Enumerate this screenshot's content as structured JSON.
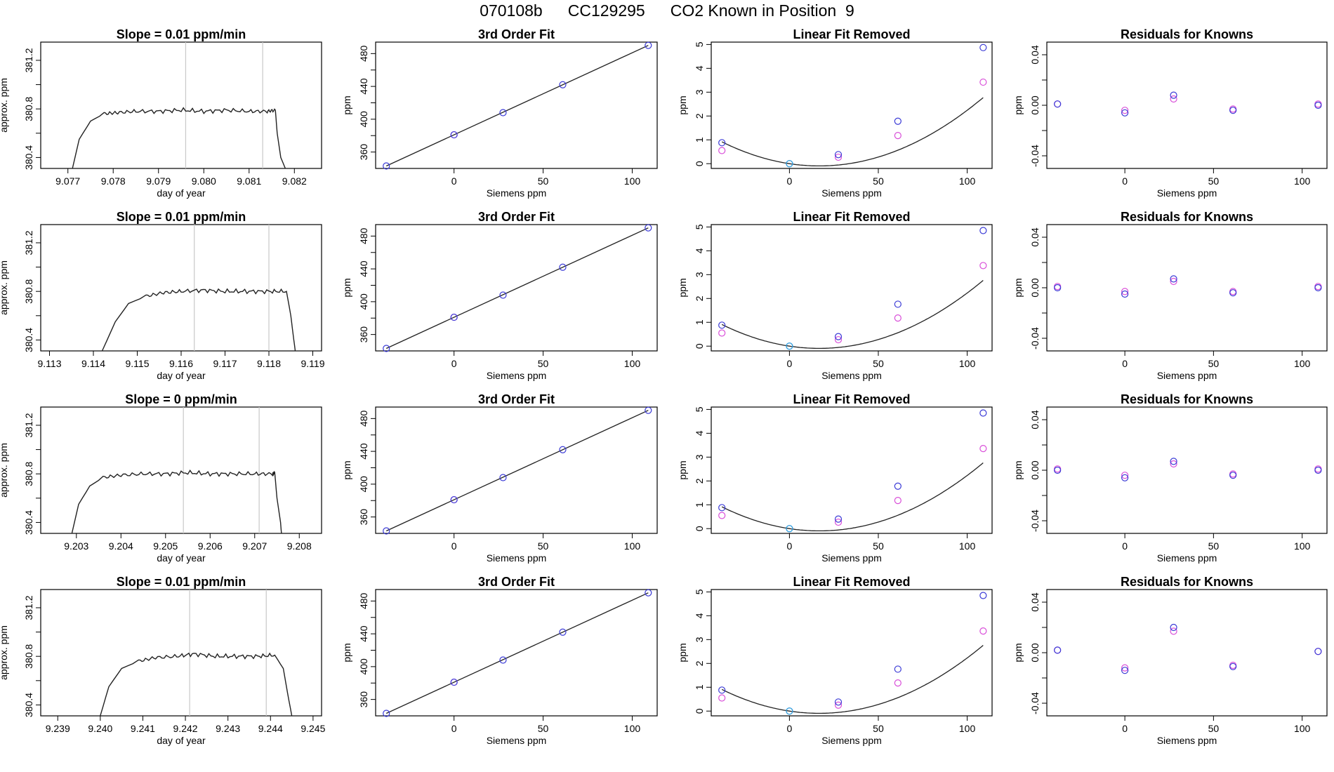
{
  "figure": {
    "title_parts": [
      "070108b",
      "CC129295",
      "CO2 Known in Position  9"
    ],
    "colors": {
      "axis": "#000000",
      "curve": "#222222",
      "blue": "#3a3ad6",
      "magenta": "#d94fd9",
      "cyan": "#33aadd",
      "red": "#ff3333",
      "vline": "#c8c8c8"
    }
  },
  "chart_data": [
    {
      "type": "line",
      "panel": "trace",
      "row": 1,
      "title": "Slope =  0.01  ppm/min",
      "xlabel": "day of year",
      "ylabel": "approx. ppm",
      "xlim": [
        9.0764,
        9.0826
      ],
      "ylim": [
        380.31,
        381.35
      ],
      "xticks": [
        9.077,
        9.078,
        9.079,
        9.08,
        9.081,
        9.082
      ],
      "xtick_labels": [
        "9.077",
        "9.078",
        "9.079",
        "9.080",
        "9.081",
        "9.082"
      ],
      "yticks": [
        380.4,
        380.8,
        381.2
      ],
      "ytick_labels": [
        "380.4",
        "380.8",
        "381.2"
      ],
      "vlines": [
        9.0796,
        9.0813
      ],
      "x": [
        9.0771,
        9.07725,
        9.0775,
        9.0778,
        9.0781,
        9.0785,
        9.079,
        9.0795,
        9.08,
        9.0805,
        9.081,
        9.0814,
        9.08158,
        9.08162,
        9.0817,
        9.0818
      ],
      "y": [
        380.31,
        380.55,
        380.7,
        380.76,
        380.77,
        380.78,
        380.78,
        380.79,
        380.78,
        380.79,
        380.78,
        380.78,
        380.79,
        380.6,
        380.4,
        380.31
      ]
    },
    {
      "type": "scatter",
      "panel": "fit",
      "row": 1,
      "title": "3rd Order Fit",
      "xlabel": "Siemens ppm",
      "ylabel": "ppm",
      "xlim": [
        -44,
        114
      ],
      "ylim": [
        340,
        494
      ],
      "xticks": [
        0,
        50,
        100
      ],
      "xtick_labels": [
        "0",
        "50",
        "100"
      ],
      "yticks": [
        360,
        400,
        440,
        480
      ],
      "ytick_labels": [
        "360",
        "400",
        "440",
        "480"
      ],
      "points": {
        "x": [
          -38,
          0,
          27.5,
          61,
          109
        ],
        "y": [
          343,
          381,
          408,
          442,
          490
        ]
      },
      "magenta_points": {
        "x": [
          0
        ],
        "y": [
          381
        ]
      },
      "curve": {
        "x": [
          -38,
          109
        ],
        "y": [
          343,
          490
        ]
      }
    },
    {
      "type": "scatter",
      "panel": "linfit",
      "row": 1,
      "title": "Linear Fit Removed",
      "xlabel": "Siemens ppm",
      "ylabel": "ppm",
      "xlim": [
        -44,
        114
      ],
      "ylim": [
        -0.2,
        5.1
      ],
      "xticks": [
        0,
        50,
        100
      ],
      "xtick_labels": [
        "0",
        "50",
        "100"
      ],
      "yticks": [
        0,
        1,
        2,
        3,
        4,
        5
      ],
      "ytick_labels": [
        "0",
        "1",
        "2",
        "3",
        "4",
        "5"
      ],
      "points": {
        "x": [
          -38,
          0,
          27.5,
          61,
          109
        ],
        "y": [
          0.88,
          0.0,
          0.38,
          1.78,
          4.87
        ]
      },
      "magenta_points": {
        "x": [
          -38,
          27.5,
          61,
          109
        ],
        "y": [
          0.55,
          0.27,
          1.18,
          3.42
        ]
      },
      "cyan_points": {
        "x": [
          0
        ],
        "y": [
          0.0
        ]
      },
      "curve": {
        "a": 0.000337,
        "b": -0.0113,
        "c": 0.0
      }
    },
    {
      "type": "scatter",
      "panel": "resid",
      "row": 1,
      "title": "Residuals for Knowns",
      "xlabel": "Siemens ppm",
      "ylabel": "ppm",
      "xlim": [
        -44,
        114
      ],
      "ylim": [
        -0.05,
        0.05
      ],
      "xticks": [
        0,
        50,
        100
      ],
      "xtick_labels": [
        "0",
        "50",
        "100"
      ],
      "yticks": [
        -0.04,
        0.0,
        0.04
      ],
      "ytick_labels": [
        "-0.04",
        "0.00",
        "0.04"
      ],
      "points": {
        "x": [
          -38,
          0,
          27.5,
          61,
          109
        ],
        "y": [
          0.001,
          -0.006,
          0.008,
          -0.004,
          0.0
        ]
      },
      "magenta_points": {
        "x": [
          -38,
          0,
          27.5,
          61,
          109
        ],
        "y": [
          0.001,
          -0.004,
          0.005,
          -0.003,
          0.001
        ]
      }
    },
    {
      "type": "line",
      "panel": "trace",
      "row": 2,
      "title": "Slope =  0.01  ppm/min",
      "xlabel": "day of year",
      "ylabel": "approx. ppm",
      "xlim": [
        9.1128,
        9.1192
      ],
      "ylim": [
        380.31,
        381.35
      ],
      "xticks": [
        9.113,
        9.114,
        9.115,
        9.116,
        9.117,
        9.118,
        9.119
      ],
      "xtick_labels": [
        "9.113",
        "9.114",
        "9.115",
        "9.116",
        "9.117",
        "9.118",
        "9.119"
      ],
      "vlines": [
        9.1163,
        9.118
      ],
      "yticks": [
        380.4,
        380.8,
        381.2
      ],
      "ytick_labels": [
        "380.4",
        "380.8",
        "381.2"
      ],
      "x": [
        9.1142,
        9.1145,
        9.1148,
        9.1152,
        9.1156,
        9.116,
        9.1165,
        9.117,
        9.1175,
        9.118,
        9.1184,
        9.1185,
        9.11855,
        9.1186
      ],
      "y": [
        380.31,
        380.55,
        380.7,
        380.76,
        380.79,
        380.8,
        380.81,
        380.8,
        380.8,
        380.8,
        380.8,
        380.6,
        380.45,
        380.31
      ]
    },
    {
      "type": "scatter",
      "panel": "fit",
      "row": 2,
      "title": "3rd Order Fit",
      "xlabel": "Siemens ppm",
      "ylabel": "ppm",
      "xlim": [
        -44,
        114
      ],
      "ylim": [
        340,
        494
      ],
      "xticks": [
        0,
        50,
        100
      ],
      "xtick_labels": [
        "0",
        "50",
        "100"
      ],
      "yticks": [
        360,
        400,
        440,
        480
      ],
      "ytick_labels": [
        "360",
        "400",
        "440",
        "480"
      ],
      "points": {
        "x": [
          -38,
          0,
          27.5,
          61,
          109
        ],
        "y": [
          343,
          381,
          408,
          442,
          490
        ]
      },
      "magenta_points": {
        "x": [
          0
        ],
        "y": [
          381
        ]
      },
      "curve": {
        "x": [
          -38,
          109
        ],
        "y": [
          343,
          490
        ]
      }
    },
    {
      "type": "scatter",
      "panel": "linfit",
      "row": 2,
      "title": "Linear Fit Removed",
      "xlabel": "Siemens ppm",
      "ylabel": "ppm",
      "xlim": [
        -44,
        114
      ],
      "ylim": [
        -0.2,
        5.1
      ],
      "xticks": [
        0,
        50,
        100
      ],
      "xtick_labels": [
        "0",
        "50",
        "100"
      ],
      "yticks": [
        0,
        1,
        2,
        3,
        4,
        5
      ],
      "ytick_labels": [
        "0",
        "1",
        "2",
        "3",
        "4",
        "5"
      ],
      "points": {
        "x": [
          -38,
          0,
          27.5,
          61,
          109
        ],
        "y": [
          0.88,
          0.0,
          0.4,
          1.76,
          4.85
        ]
      },
      "magenta_points": {
        "x": [
          -38,
          27.5,
          61,
          109
        ],
        "y": [
          0.55,
          0.27,
          1.18,
          3.38
        ]
      },
      "cyan_points": {
        "x": [
          0
        ],
        "y": [
          0.0
        ]
      },
      "curve": {
        "a": 0.000335,
        "b": -0.0112,
        "c": 0.0
      }
    },
    {
      "type": "scatter",
      "panel": "resid",
      "row": 2,
      "title": "Residuals for Knowns",
      "xlabel": "Siemens ppm",
      "ylabel": "ppm",
      "xlim": [
        -44,
        114
      ],
      "ylim": [
        -0.05,
        0.05
      ],
      "xticks": [
        0,
        50,
        100
      ],
      "xtick_labels": [
        "0",
        "50",
        "100"
      ],
      "yticks": [
        -0.04,
        0.0,
        0.04
      ],
      "ytick_labels": [
        "-0.04",
        "0.00",
        "0.04"
      ],
      "points": {
        "x": [
          -38,
          0,
          27.5,
          61,
          109
        ],
        "y": [
          0.0,
          -0.005,
          0.007,
          -0.004,
          0.0
        ]
      },
      "magenta_points": {
        "x": [
          -38,
          0,
          27.5,
          61,
          109
        ],
        "y": [
          0.001,
          -0.003,
          0.005,
          -0.003,
          0.001
        ]
      }
    },
    {
      "type": "line",
      "panel": "trace",
      "row": 3,
      "title": "Slope =  0  ppm/min",
      "xlabel": "day of year",
      "ylabel": "approx. ppm",
      "xlim": [
        9.2022,
        9.2085
      ],
      "ylim": [
        380.31,
        381.35
      ],
      "xticks": [
        9.203,
        9.204,
        9.205,
        9.206,
        9.207,
        9.208
      ],
      "xtick_labels": [
        "9.203",
        "9.204",
        "9.205",
        "9.206",
        "9.207",
        "9.208"
      ],
      "vlines": [
        9.2054,
        9.2071
      ],
      "yticks": [
        380.4,
        380.8,
        381.2
      ],
      "ytick_labels": [
        "380.4",
        "380.8",
        "381.2"
      ],
      "x": [
        9.2029,
        9.20305,
        9.2033,
        9.2036,
        9.204,
        9.2045,
        9.205,
        9.2055,
        9.206,
        9.2065,
        9.207,
        9.2074,
        9.20745,
        9.2075,
        9.20758,
        9.2076
      ],
      "y": [
        380.31,
        380.55,
        380.7,
        380.77,
        380.79,
        380.8,
        380.8,
        380.81,
        380.8,
        380.8,
        380.8,
        380.8,
        380.81,
        380.6,
        380.4,
        380.31
      ]
    },
    {
      "type": "scatter",
      "panel": "fit",
      "row": 3,
      "title": "3rd Order Fit",
      "xlabel": "Siemens ppm",
      "ylabel": "ppm",
      "xlim": [
        -44,
        114
      ],
      "ylim": [
        340,
        494
      ],
      "xticks": [
        0,
        50,
        100
      ],
      "xtick_labels": [
        "0",
        "50",
        "100"
      ],
      "yticks": [
        360,
        400,
        440,
        480
      ],
      "ytick_labels": [
        "360",
        "400",
        "440",
        "480"
      ],
      "points": {
        "x": [
          -38,
          0,
          27.5,
          61,
          109
        ],
        "y": [
          343,
          381,
          408,
          442,
          490
        ]
      },
      "magenta_points": {
        "x": [
          0
        ],
        "y": [
          381
        ]
      },
      "curve": {
        "x": [
          -38,
          109
        ],
        "y": [
          343,
          490
        ]
      }
    },
    {
      "type": "scatter",
      "panel": "linfit",
      "row": 3,
      "title": "Linear Fit Removed",
      "xlabel": "Siemens ppm",
      "ylabel": "ppm",
      "xlim": [
        -44,
        114
      ],
      "ylim": [
        -0.2,
        5.1
      ],
      "xticks": [
        0,
        50,
        100
      ],
      "xtick_labels": [
        "0",
        "50",
        "100"
      ],
      "yticks": [
        0,
        1,
        2,
        3,
        4,
        5
      ],
      "ytick_labels": [
        "0",
        "1",
        "2",
        "3",
        "4",
        "5"
      ],
      "points": {
        "x": [
          -38,
          0,
          27.5,
          61,
          109
        ],
        "y": [
          0.88,
          0.0,
          0.4,
          1.78,
          4.85
        ]
      },
      "magenta_points": {
        "x": [
          -38,
          27.5,
          61,
          109
        ],
        "y": [
          0.55,
          0.27,
          1.18,
          3.36
        ]
      },
      "cyan_points": {
        "x": [
          0
        ],
        "y": [
          0.0
        ]
      },
      "curve": {
        "a": 0.000336,
        "b": -0.0113,
        "c": 0.0
      }
    },
    {
      "type": "scatter",
      "panel": "resid",
      "row": 3,
      "title": "Residuals for Knowns",
      "xlabel": "Siemens ppm",
      "ylabel": "ppm",
      "xlim": [
        -44,
        114
      ],
      "ylim": [
        -0.05,
        0.05
      ],
      "xticks": [
        0,
        50,
        100
      ],
      "xtick_labels": [
        "0",
        "50",
        "100"
      ],
      "yticks": [
        -0.04,
        0.0,
        0.04
      ],
      "ytick_labels": [
        "-0.04",
        "0.00",
        "0.04"
      ],
      "points": {
        "x": [
          -38,
          0,
          27.5,
          61,
          109
        ],
        "y": [
          0.0,
          -0.006,
          0.007,
          -0.004,
          0.0
        ]
      },
      "magenta_points": {
        "x": [
          -38,
          0,
          27.5,
          61,
          109
        ],
        "y": [
          0.001,
          -0.004,
          0.005,
          -0.003,
          0.001
        ]
      }
    },
    {
      "type": "line",
      "panel": "trace",
      "row": 4,
      "title": "Slope =  0.01  ppm/min",
      "xlabel": "day of year",
      "ylabel": "approx. ppm",
      "xlim": [
        9.2386,
        9.2452
      ],
      "ylim": [
        380.31,
        381.35
      ],
      "xticks": [
        9.239,
        9.24,
        9.241,
        9.242,
        9.243,
        9.244,
        9.245
      ],
      "xtick_labels": [
        "9.239",
        "9.240",
        "9.241",
        "9.242",
        "9.243",
        "9.244",
        "9.245"
      ],
      "vlines": [
        9.2421,
        9.2439
      ],
      "yticks": [
        380.4,
        380.8,
        381.2
      ],
      "ytick_labels": [
        "380.4",
        "380.8",
        "381.2"
      ],
      "x": [
        9.24,
        9.2402,
        9.2405,
        9.2409,
        9.2413,
        9.2418,
        9.2422,
        9.2427,
        9.2432,
        9.2437,
        9.2441,
        9.2443,
        9.2444,
        9.2445
      ],
      "y": [
        380.31,
        380.55,
        380.7,
        380.76,
        380.79,
        380.8,
        380.82,
        380.8,
        380.8,
        380.8,
        380.81,
        380.7,
        380.5,
        380.31
      ]
    },
    {
      "type": "scatter",
      "panel": "fit",
      "row": 4,
      "title": "3rd Order Fit",
      "xlabel": "Siemens ppm",
      "ylabel": "ppm",
      "xlim": [
        -44,
        114
      ],
      "ylim": [
        340,
        494
      ],
      "xticks": [
        0,
        50,
        100
      ],
      "xtick_labels": [
        "0",
        "50",
        "100"
      ],
      "yticks": [
        360,
        400,
        440,
        480
      ],
      "ytick_labels": [
        "360",
        "400",
        "440",
        "480"
      ],
      "points": {
        "x": [
          -38,
          0,
          27.5,
          61,
          109
        ],
        "y": [
          343,
          381,
          408,
          442,
          490
        ]
      },
      "magenta_points": {
        "x": [
          0
        ],
        "y": [
          381
        ]
      },
      "curve": {
        "x": [
          -38,
          109
        ],
        "y": [
          343,
          490
        ]
      }
    },
    {
      "type": "scatter",
      "panel": "linfit",
      "row": 4,
      "title": "Linear Fit Removed",
      "xlabel": "Siemens ppm",
      "ylabel": "ppm",
      "xlim": [
        -44,
        114
      ],
      "ylim": [
        -0.2,
        5.1
      ],
      "xticks": [
        0,
        50,
        100
      ],
      "xtick_labels": [
        "0",
        "50",
        "100"
      ],
      "yticks": [
        0,
        1,
        2,
        3,
        4,
        5
      ],
      "ytick_labels": [
        "0",
        "1",
        "2",
        "3",
        "4",
        "5"
      ],
      "points": {
        "x": [
          -38,
          0,
          27.5,
          61,
          109
        ],
        "y": [
          0.88,
          0.0,
          0.38,
          1.76,
          4.85
        ]
      },
      "magenta_points": {
        "x": [
          -38,
          27.5,
          61,
          109
        ],
        "y": [
          0.55,
          0.25,
          1.18,
          3.36
        ]
      },
      "cyan_points": {
        "x": [
          0
        ],
        "y": [
          0.0
        ]
      },
      "curve": {
        "a": 0.000335,
        "b": -0.0112,
        "c": 0.0
      }
    },
    {
      "type": "scatter",
      "panel": "resid",
      "row": 4,
      "title": "Residuals for Knowns",
      "xlabel": "Siemens ppm",
      "ylabel": "ppm",
      "xlim": [
        -44,
        114
      ],
      "ylim": [
        -0.05,
        0.05
      ],
      "xticks": [
        0,
        50,
        100
      ],
      "xtick_labels": [
        "0",
        "50",
        "100"
      ],
      "yticks": [
        -0.04,
        0.0,
        0.04
      ],
      "ytick_labels": [
        "-0.04",
        "0.00",
        "0.04"
      ],
      "points": {
        "x": [
          -38,
          0,
          27.5,
          61,
          109
        ],
        "y": [
          0.002,
          -0.014,
          0.02,
          -0.011,
          0.001
        ]
      },
      "magenta_points": {
        "x": [
          -38,
          0,
          27.5,
          61,
          109
        ],
        "y": [
          0.002,
          -0.012,
          0.017,
          -0.01,
          0.001
        ]
      }
    }
  ]
}
